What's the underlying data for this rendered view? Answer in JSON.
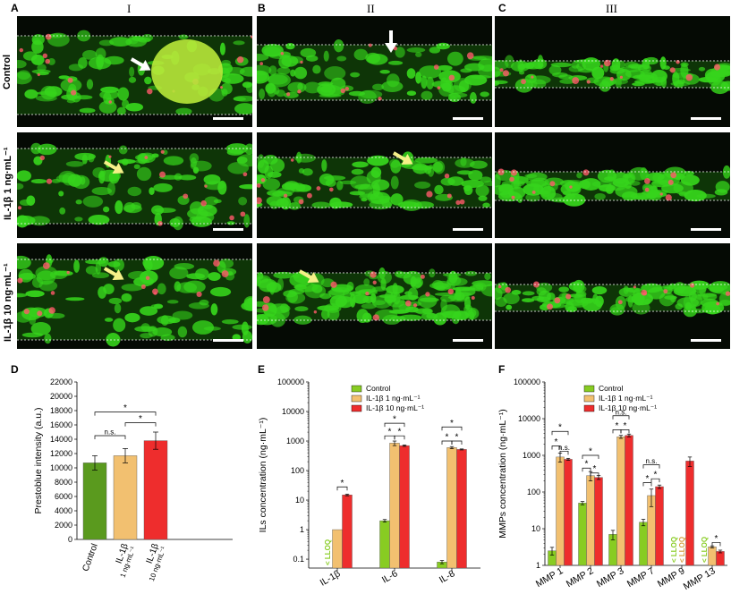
{
  "panel_letters": {
    "A": "A",
    "B": "B",
    "C": "C",
    "D": "D",
    "E": "E",
    "F": "F"
  },
  "column_titles": {
    "c1": "I",
    "c2": "II",
    "c3": "III"
  },
  "row_labels": {
    "r1": "Control",
    "r2": "IL-1β 1 ng·mL⁻¹",
    "r3": "IL-1β 10 ng·mL⁻¹"
  },
  "colors": {
    "control": "#88cc22",
    "il1": "#f2c070",
    "il10": "#ee2d2d",
    "bar_dark_green": "#5a9a1e",
    "cell_green": "#36d41c"
  },
  "chart_data": [
    {
      "type": "bar",
      "panel": "D",
      "categories": [
        "Control",
        "IL-1β",
        "IL-1β"
      ],
      "sublabels": [
        "",
        "1 ng·mL⁻¹",
        "10 ng·mL⁻¹"
      ],
      "values": [
        10700,
        11700,
        13800
      ],
      "errors": [
        1000,
        1000,
        1200
      ],
      "colors": [
        "#5a9a1e",
        "#f2c070",
        "#ee2d2d"
      ],
      "ylabel": "Prestoblue intensity (a.u.)",
      "ylim": [
        0,
        22000
      ],
      "yticks": [
        "0",
        "2000",
        "4000",
        "6000",
        "8000",
        "10000",
        "12000",
        "14000",
        "16000",
        "18000",
        "20000",
        "22000"
      ],
      "annotations": [
        "n.s.",
        "*",
        "*"
      ]
    },
    {
      "type": "bar",
      "panel": "E",
      "scale": "log",
      "categories": [
        "IL-1β",
        "IL-6",
        "IL-8"
      ],
      "series": [
        {
          "name": "Control",
          "values": [
            null,
            2.0,
            0.08
          ],
          "errors": [
            null,
            0.2,
            0.01
          ]
        },
        {
          "name": "IL-1β 1 ng·mL⁻¹",
          "values": [
            1.0,
            850,
            600
          ],
          "errors": [
            null,
            150,
            50
          ]
        },
        {
          "name": "IL-1β 10 ng·mL⁻¹",
          "values": [
            15,
            700,
            520
          ],
          "errors": [
            1,
            40,
            20
          ]
        }
      ],
      "below_lloq_label": "< LLOQ",
      "ylabel": "ILs concentration (ng·mL⁻¹)",
      "ylim": [
        0.05,
        100000
      ],
      "yticks": [
        "0.1",
        "1",
        "10",
        "100",
        "1000",
        "10000",
        "100000"
      ],
      "annotations": [
        "*",
        "*",
        "*",
        "*",
        "*",
        "*",
        "*"
      ]
    },
    {
      "type": "bar",
      "panel": "F",
      "scale": "log",
      "categories": [
        "MMP 1",
        "MMP 2",
        "MMP 3",
        "MMP 7",
        "MMP 9",
        "MMP 13"
      ],
      "series": [
        {
          "name": "Control",
          "values": [
            2.5,
            50,
            7,
            15,
            null,
            null
          ],
          "errors": [
            0.6,
            5,
            2,
            3,
            null,
            null
          ]
        },
        {
          "name": "IL-1β 1 ng·mL⁻¹",
          "values": [
            900,
            280,
            3200,
            80,
            null,
            3.2
          ],
          "errors": [
            250,
            80,
            300,
            40,
            null,
            0.2
          ]
        },
        {
          "name": "IL-1β 10 ng·mL⁻¹",
          "values": [
            780,
            250,
            3500,
            140,
            700,
            2.4
          ],
          "errors": [
            50,
            30,
            300,
            15,
            200,
            0.2
          ]
        }
      ],
      "below_lloq_label": "< LLOQ",
      "ylabel": "MMPs concentration (ng·mL⁻¹)",
      "ylim": [
        1,
        100000
      ],
      "yticks": [
        "1",
        "10",
        "100",
        "1000",
        "10000",
        "100000"
      ],
      "annotations": [
        "*",
        "*",
        "n.s.",
        "*",
        "*",
        "*",
        "*",
        "n.s.",
        "*",
        "*",
        "n.s.",
        "*"
      ]
    }
  ]
}
